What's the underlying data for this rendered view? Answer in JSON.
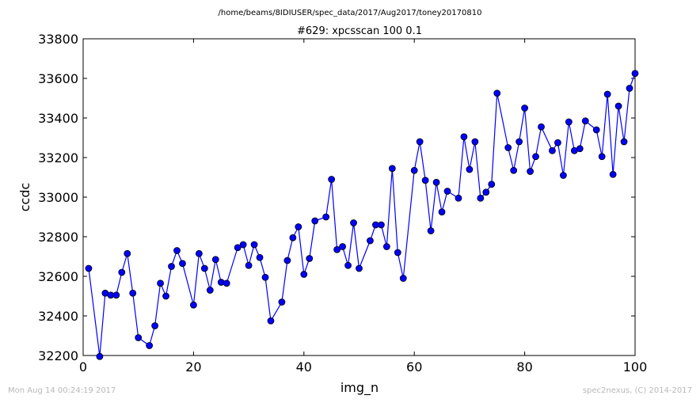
{
  "suptitle": "/home/beams/8IDIUSER/spec_data/2017/Aug2017/toney20170810",
  "footer_left": "Mon Aug 14 00:24:19 2017",
  "footer_right": "spec2nexus, (C) 2014-2017",
  "chart_data": {
    "type": "line",
    "title": "#629: xpcsscan 100 0.1",
    "xlabel": "img_n",
    "ylabel": "ccdc",
    "xlim": [
      0,
      100
    ],
    "ylim": [
      32200,
      33800
    ],
    "xticks": [
      0,
      20,
      40,
      60,
      80,
      100
    ],
    "yticks": [
      32200,
      32400,
      32600,
      32800,
      33000,
      33200,
      33400,
      33600,
      33800
    ],
    "grid": false,
    "legend": "none",
    "series_color": "#0000ff",
    "x": [
      1,
      3,
      4,
      5,
      6,
      7,
      8,
      9,
      10,
      12,
      13,
      14,
      15,
      16,
      17,
      18,
      20,
      21,
      22,
      23,
      24,
      25,
      26,
      28,
      29,
      30,
      31,
      32,
      33,
      34,
      36,
      37,
      38,
      39,
      40,
      41,
      42,
      44,
      45,
      46,
      47,
      48,
      49,
      50,
      52,
      53,
      54,
      55,
      56,
      57,
      58,
      60,
      61,
      62,
      63,
      64,
      65,
      66,
      68,
      69,
      70,
      71,
      72,
      73,
      74,
      75,
      77,
      78,
      79,
      80,
      81,
      82,
      83,
      85,
      86,
      87,
      88,
      89,
      90,
      91,
      93,
      94,
      95,
      96,
      97,
      98,
      99,
      100
    ],
    "y": [
      32640,
      32195,
      32515,
      32505,
      32505,
      32620,
      32715,
      32515,
      32290,
      32250,
      32350,
      32565,
      32500,
      32650,
      32730,
      32665,
      32455,
      32715,
      32640,
      32530,
      32685,
      32570,
      32565,
      32745,
      32760,
      32655,
      32760,
      32695,
      32595,
      32375,
      32470,
      32680,
      32795,
      32850,
      32610,
      32690,
      32880,
      32900,
      33090,
      32735,
      32750,
      32655,
      32870,
      32640,
      32780,
      32860,
      32860,
      32750,
      33145,
      32720,
      32590,
      33135,
      33280,
      33085,
      32830,
      33075,
      32925,
      33030,
      32995,
      33305,
      33140,
      33280,
      32995,
      33025,
      33065,
      33525,
      33250,
      33135,
      33280,
      33450,
      33130,
      33205,
      33355,
      33235,
      33275,
      33110,
      33380,
      33235,
      33245,
      33385,
      33340,
      33205,
      33520,
      33115,
      33460,
      33280,
      33550,
      33625
    ]
  }
}
